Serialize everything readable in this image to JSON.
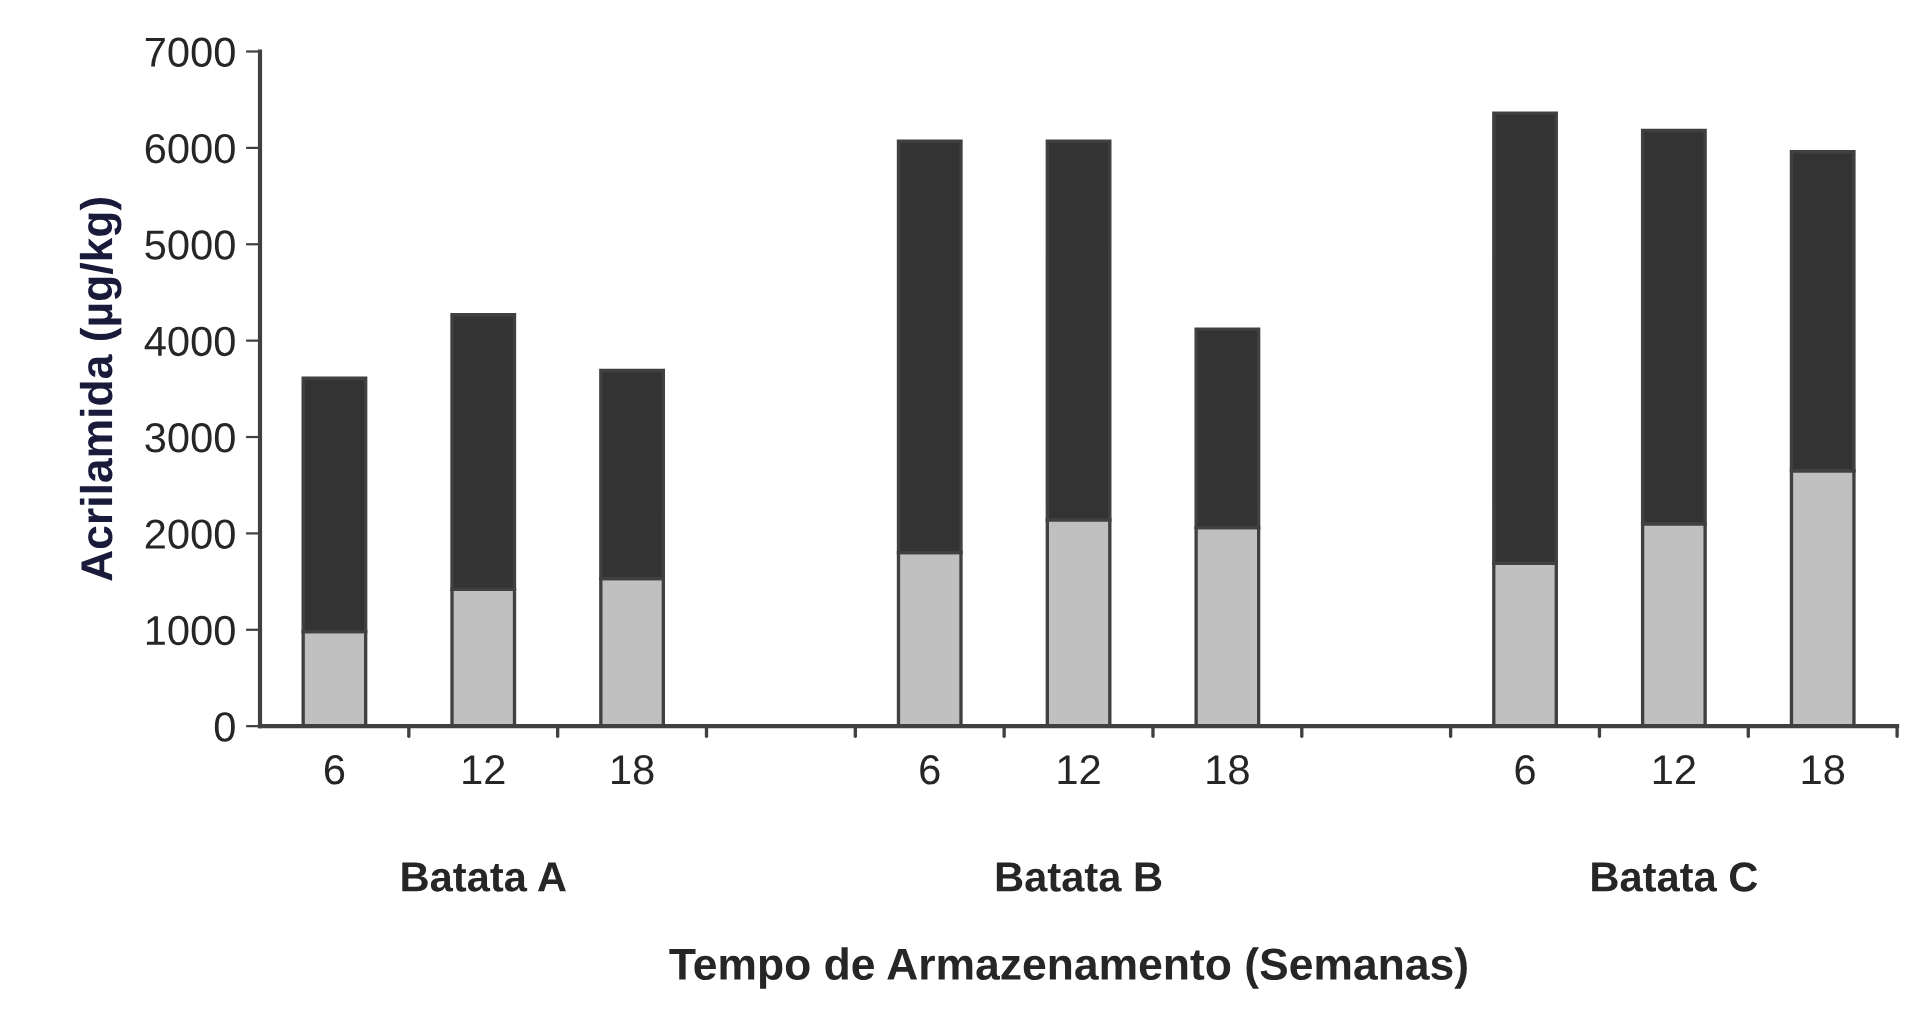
{
  "chart_data": {
    "type": "bar",
    "stacked": true,
    "categories": [
      "6",
      "12",
      "18",
      null,
      "6",
      "12",
      "18",
      null,
      "6",
      "12",
      "18"
    ],
    "series": [
      {
        "color": "#c0c0c0",
        "values": [
          980,
          1420,
          1530,
          null,
          1800,
          2140,
          2060,
          null,
          1690,
          2100,
          2650
        ]
      },
      {
        "color": "#333333",
        "values": [
          2630,
          2850,
          2160,
          null,
          4270,
          3930,
          2060,
          null,
          4670,
          4080,
          3310
        ]
      }
    ],
    "ylabel": "Acrilamida (µg/kg)",
    "xlabel": "Tempo de Armazenamento (Semanas)",
    "annotations": [
      "Batata A",
      "Batata B",
      "Batata C"
    ],
    "ylim": [
      0,
      7000
    ],
    "yticks": [
      0,
      1000,
      2000,
      3000,
      4000,
      5000,
      6000,
      7000
    ],
    "grid": false,
    "legend": false
  }
}
